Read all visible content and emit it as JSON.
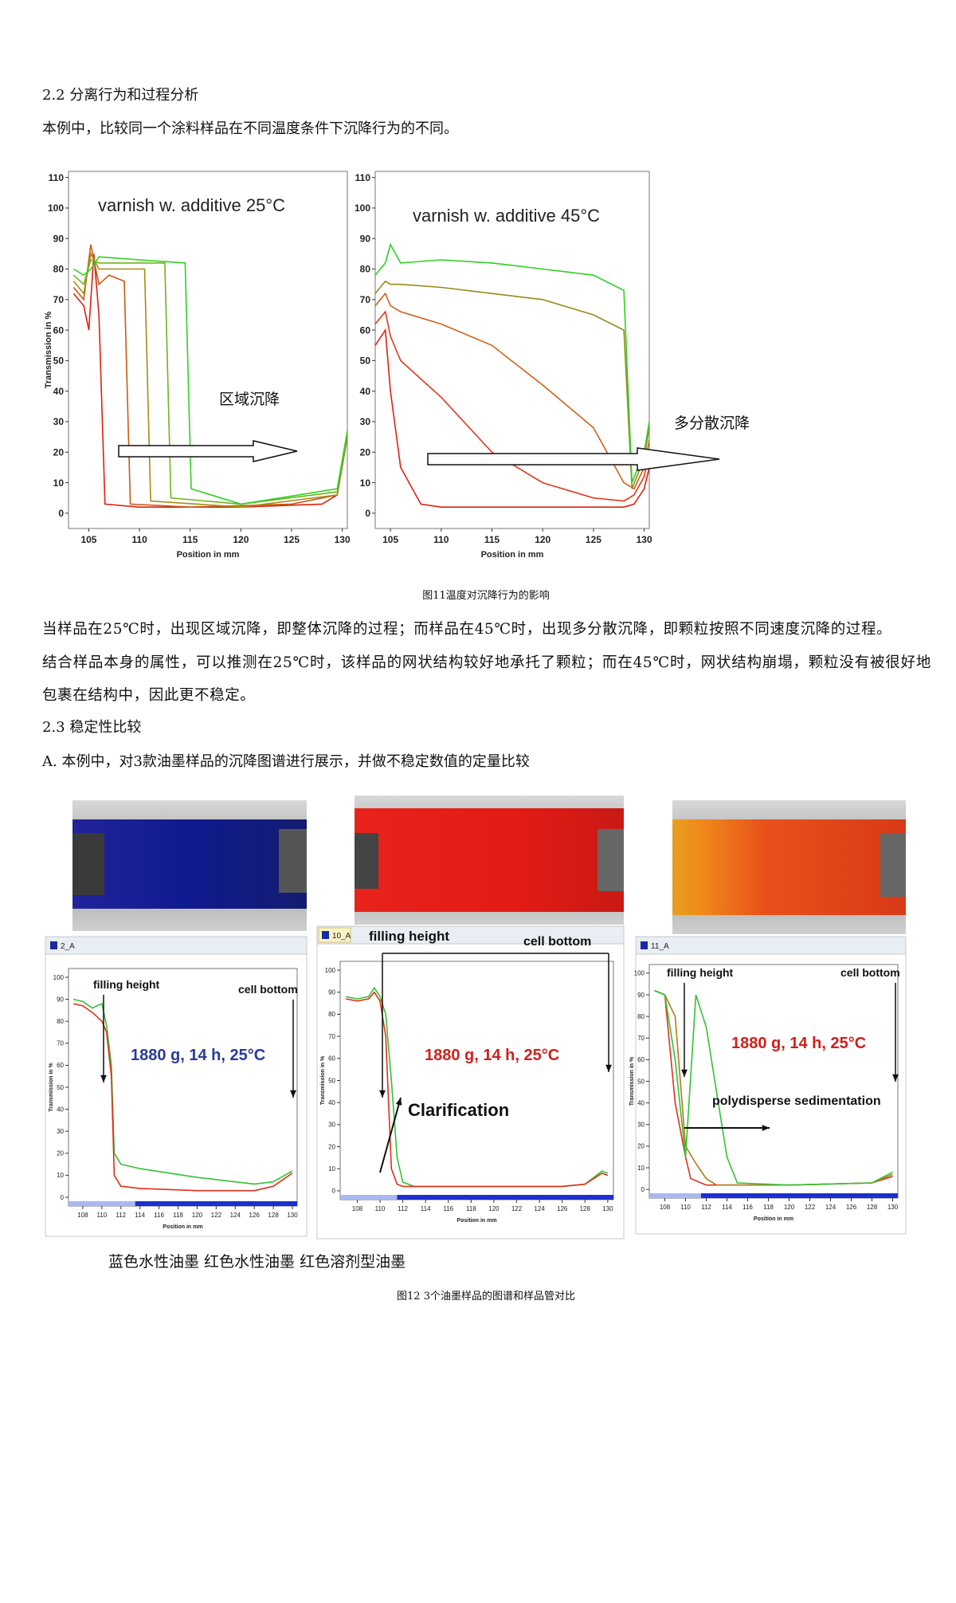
{
  "section_2_2": {
    "heading": "2.2 分离行为和过程分析",
    "intro": "本例中，比较同一个涂料样品在不同温度条件下沉降行为的不同。"
  },
  "figure_11": {
    "charts": [
      {
        "type": "line",
        "title": "varnish w. additive 25°C",
        "annotation": "区域沉降",
        "ylabel": "Transmission in %",
        "xlabel": "Position in mm",
        "xlim": [
          103,
          130.5
        ],
        "ylim": [
          -5,
          112
        ],
        "xticks": [
          105,
          110,
          115,
          120,
          125,
          130
        ],
        "yticks": [
          0,
          10,
          20,
          30,
          40,
          50,
          60,
          70,
          80,
          90,
          100,
          110
        ],
        "series": [
          {
            "color": "#e0200f",
            "x": [
              103.5,
              104.5,
              105,
              105.5,
              106,
              106.6,
              110,
              120,
              128,
              129.5,
              130.5
            ],
            "values": [
              72,
              68,
              60,
              85,
              65,
              3,
              2,
              2,
              3,
              6,
              25
            ]
          },
          {
            "color": "#c85a12",
            "x": [
              103.5,
              104.5,
              105.2,
              106,
              107,
              108.5,
              109.1,
              115,
              125,
              129.5,
              130.5
            ],
            "values": [
              74,
              70,
              88,
              75,
              78,
              76,
              3,
              2,
              3,
              6,
              25
            ]
          },
          {
            "color": "#a88a14",
            "x": [
              103.5,
              104.5,
              105.2,
              106,
              108,
              110.5,
              111.1,
              120,
              129.5,
              130.5
            ],
            "values": [
              76,
              72,
              85,
              80,
              80,
              80,
              4,
              2,
              6,
              25
            ]
          },
          {
            "color": "#70b41a",
            "x": [
              103.5,
              104.5,
              105.2,
              106,
              109,
              112.5,
              113.1,
              120,
              129.5,
              130.5
            ],
            "values": [
              78,
              75,
              83,
              82,
              82,
              82,
              5,
              3,
              7,
              26
            ]
          },
          {
            "color": "#2fd022",
            "x": [
              103.5,
              104.5,
              105.2,
              106,
              110,
              114.5,
              115.1,
              120,
              129.5,
              130.5
            ],
            "values": [
              80,
              78,
              80,
              84,
              83,
              82,
              8,
              3,
              8,
              27
            ]
          }
        ]
      },
      {
        "type": "line",
        "title": "varnish w. additive 45°C",
        "annotation": "多分散沉降",
        "xlabel": "Position in mm",
        "xlim": [
          103.5,
          130.5
        ],
        "ylim": [
          -5,
          112
        ],
        "xticks": [
          105,
          110,
          115,
          120,
          125,
          130
        ],
        "yticks": [
          0,
          10,
          20,
          30,
          40,
          50,
          60,
          70,
          80,
          90,
          100,
          110
        ],
        "series": [
          {
            "color": "#e0200f",
            "x": [
              103.5,
              104.5,
              105,
              106,
              108,
              110,
              128,
              129,
              130,
              130.5
            ],
            "values": [
              55,
              60,
              40,
              15,
              3,
              2,
              2,
              3,
              8,
              15
            ]
          },
          {
            "color": "#e03a1a",
            "x": [
              103.5,
              104.5,
              105,
              106,
              110,
              115,
              120,
              125,
              128,
              129,
              130,
              130.5
            ],
            "values": [
              62,
              66,
              58,
              50,
              38,
              20,
              10,
              5,
              4,
              6,
              12,
              20
            ]
          },
          {
            "color": "#d0601a",
            "x": [
              103.5,
              104.5,
              105,
              106,
              110,
              115,
              120,
              125,
              128,
              129,
              130,
              130.5
            ],
            "values": [
              68,
              72,
              68,
              66,
              62,
              55,
              42,
              28,
              10,
              8,
              15,
              24
            ]
          },
          {
            "color": "#9a8a16",
            "x": [
              103.5,
              104.5,
              105,
              106,
              110,
              115,
              120,
              125,
              128,
              128.8,
              130,
              130.5
            ],
            "values": [
              72,
              76,
              75,
              75,
              74,
              72,
              70,
              65,
              60,
              8,
              18,
              28
            ]
          },
          {
            "color": "#2fd022",
            "x": [
              103.5,
              104.5,
              105,
              106,
              110,
              115,
              120,
              125,
              128,
              128.8,
              130,
              130.5
            ],
            "values": [
              78,
              82,
              88,
              82,
              83,
              82,
              80,
              78,
              73,
              10,
              20,
              30
            ]
          }
        ]
      }
    ],
    "caption": "图11温度对沉降行为的影响"
  },
  "paragraphs": [
    "当样品在25℃时，出现区域沉降，即整体沉降的过程；而样品在45℃时，出现多分散沉降，即颗粒按照不同速度沉降的过程。",
    "结合样品本身的属性，可以推测在25℃时，该样品的网状结构较好地承托了颗粒；而在45℃时，网状结构崩塌，颗粒没有被很好地包裹在结构中，因此更不稳定。"
  ],
  "section_2_3": {
    "heading": "2.3 稳定性比较",
    "intro": "A. 本例中，对3款油墨样品的沉降图谱进行展示，并做不稳定数值的定量比较"
  },
  "figure_12": {
    "panels": [
      {
        "tab": "2_A",
        "filling_label": "filling height",
        "bottom_label": "cell bottom",
        "condition": "1880 g, 14 h, 25°C",
        "chart": {
          "type": "line",
          "ylabel": "Transmission in %",
          "xlabel": "Position in mm",
          "xlim": [
            106.5,
            130.5
          ],
          "ylim": [
            -4,
            104
          ],
          "xticks": [
            108,
            110,
            112,
            114,
            116,
            118,
            120,
            122,
            124,
            126,
            128,
            130
          ],
          "yticks": [
            0,
            10,
            20,
            30,
            40,
            50,
            60,
            70,
            80,
            90,
            100
          ],
          "series": [
            {
              "color": "#33c233",
              "x": [
                107,
                108,
                109,
                110,
                110.5,
                111,
                111.3,
                112,
                114,
                120,
                126,
                128,
                130
              ],
              "values": [
                90,
                89,
                86,
                88,
                78,
                60,
                20,
                15,
                13,
                9,
                6,
                7,
                12
              ]
            },
            {
              "color": "#e0301a",
              "x": [
                107,
                108,
                109,
                110,
                110.5,
                111,
                111.3,
                112,
                114,
                120,
                126,
                128,
                130
              ],
              "values": [
                88,
                87,
                84,
                80,
                75,
                55,
                10,
                5,
                4,
                3,
                3,
                5,
                11
              ]
            }
          ]
        }
      },
      {
        "tab": "10_A",
        "filling_label": "filling height",
        "bottom_label": "cell bottom",
        "condition": "1880 g, 14 h, 25°C",
        "note": "Clarification",
        "chart": {
          "type": "line",
          "ylabel": "Transmission in %",
          "xlabel": "Position in mm",
          "xlim": [
            106.5,
            130.5
          ],
          "ylim": [
            -4,
            104
          ],
          "xticks": [
            108,
            110,
            112,
            114,
            116,
            118,
            120,
            122,
            124,
            126,
            128,
            130
          ],
          "yticks": [
            0,
            10,
            20,
            30,
            40,
            50,
            60,
            70,
            80,
            90,
            100
          ],
          "series": [
            {
              "color": "#33c233",
              "x": [
                107,
                108,
                109,
                109.5,
                110,
                110.5,
                111,
                111.5,
                112,
                113,
                120,
                126,
                128,
                129.5,
                130
              ],
              "values": [
                88,
                87,
                88,
                92,
                88,
                80,
                50,
                15,
                4,
                2,
                2,
                2,
                3,
                9,
                8
              ]
            },
            {
              "color": "#e0301a",
              "x": [
                107,
                108,
                109,
                109.5,
                110,
                110.5,
                111,
                111.5,
                112,
                113,
                120,
                126,
                128,
                129.5,
                130
              ],
              "values": [
                87,
                86,
                87,
                90,
                86,
                70,
                10,
                3,
                2,
                2,
                2,
                2,
                3,
                8,
                7
              ]
            }
          ]
        }
      },
      {
        "tab": "11_A",
        "filling_label": "filling height",
        "bottom_label": "cell bottom",
        "condition": "1880 g, 14 h, 25°C",
        "note": "polydisperse sedimentation",
        "chart": {
          "type": "line",
          "ylabel": "Transmission in %",
          "xlabel": "Position in mm",
          "xlim": [
            106.5,
            130.5
          ],
          "ylim": [
            -4,
            104
          ],
          "xticks": [
            108,
            110,
            112,
            114,
            116,
            118,
            120,
            122,
            124,
            126,
            128,
            130
          ],
          "yticks": [
            0,
            10,
            20,
            30,
            40,
            50,
            60,
            70,
            80,
            90,
            100
          ],
          "series": [
            {
              "color": "#e0301a",
              "x": [
                107,
                108,
                109,
                110,
                110.5,
                112,
                120,
                128,
                130
              ],
              "values": [
                92,
                90,
                40,
                15,
                5,
                2,
                2,
                3,
                6
              ]
            },
            {
              "color": "#b07a18",
              "x": [
                107,
                108,
                109,
                110,
                111,
                112,
                113,
                120,
                128,
                130
              ],
              "values": [
                92,
                90,
                80,
                20,
                12,
                5,
                2,
                2,
                3,
                7
              ]
            },
            {
              "color": "#33c233",
              "x": [
                107,
                108,
                109,
                110,
                111,
                112,
                113,
                114,
                115,
                120,
                128,
                130
              ],
              "values": [
                92,
                90,
                60,
                15,
                90,
                75,
                45,
                15,
                3,
                2,
                3,
                8
              ]
            }
          ]
        }
      }
    ],
    "sample_labels": "蓝色水性油墨 红色水性油墨 红色溶剂型油墨",
    "caption": "图12 3个油墨样品的图谱和样品管对比"
  }
}
